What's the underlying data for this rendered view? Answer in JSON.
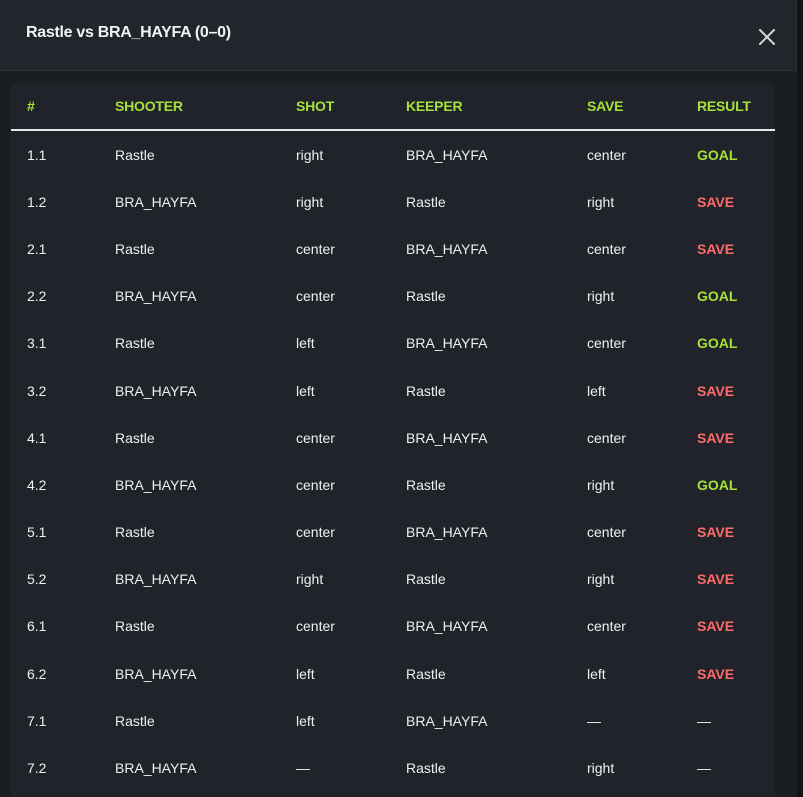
{
  "modal": {
    "title": "Rastle vs BRA_HAYFA (0–0)"
  },
  "table": {
    "headers": [
      "#",
      "SHOOTER",
      "SHOT",
      "KEEPER",
      "SAVE",
      "RESULT"
    ],
    "rows": [
      {
        "num": "1.1",
        "shooter": "Rastle",
        "shot": "right",
        "keeper": "BRA_HAYFA",
        "save": "center",
        "result": "GOAL"
      },
      {
        "num": "1.2",
        "shooter": "BRA_HAYFA",
        "shot": "right",
        "keeper": "Rastle",
        "save": "right",
        "result": "SAVE"
      },
      {
        "num": "2.1",
        "shooter": "Rastle",
        "shot": "center",
        "keeper": "BRA_HAYFA",
        "save": "center",
        "result": "SAVE"
      },
      {
        "num": "2.2",
        "shooter": "BRA_HAYFA",
        "shot": "center",
        "keeper": "Rastle",
        "save": "right",
        "result": "GOAL"
      },
      {
        "num": "3.1",
        "shooter": "Rastle",
        "shot": "left",
        "keeper": "BRA_HAYFA",
        "save": "center",
        "result": "GOAL"
      },
      {
        "num": "3.2",
        "shooter": "BRA_HAYFA",
        "shot": "left",
        "keeper": "Rastle",
        "save": "left",
        "result": "SAVE"
      },
      {
        "num": "4.1",
        "shooter": "Rastle",
        "shot": "center",
        "keeper": "BRA_HAYFA",
        "save": "center",
        "result": "SAVE"
      },
      {
        "num": "4.2",
        "shooter": "BRA_HAYFA",
        "shot": "center",
        "keeper": "Rastle",
        "save": "right",
        "result": "GOAL"
      },
      {
        "num": "5.1",
        "shooter": "Rastle",
        "shot": "center",
        "keeper": "BRA_HAYFA",
        "save": "center",
        "result": "SAVE"
      },
      {
        "num": "5.2",
        "shooter": "BRA_HAYFA",
        "shot": "right",
        "keeper": "Rastle",
        "save": "right",
        "result": "SAVE"
      },
      {
        "num": "6.1",
        "shooter": "Rastle",
        "shot": "center",
        "keeper": "BRA_HAYFA",
        "save": "center",
        "result": "SAVE"
      },
      {
        "num": "6.2",
        "shooter": "BRA_HAYFA",
        "shot": "left",
        "keeper": "Rastle",
        "save": "left",
        "result": "SAVE"
      },
      {
        "num": "7.1",
        "shooter": "Rastle",
        "shot": "left",
        "keeper": "BRA_HAYFA",
        "save": "—",
        "result": "—"
      },
      {
        "num": "7.2",
        "shooter": "BRA_HAYFA",
        "shot": "—",
        "keeper": "Rastle",
        "save": "right",
        "result": "—"
      }
    ]
  },
  "colors": {
    "accent_green": "#a8e03a",
    "save_red": "#ff6b6b",
    "panel_bg": "#1a1d22",
    "table_bg": "#20242a"
  },
  "icons": {
    "close": "close-icon"
  }
}
